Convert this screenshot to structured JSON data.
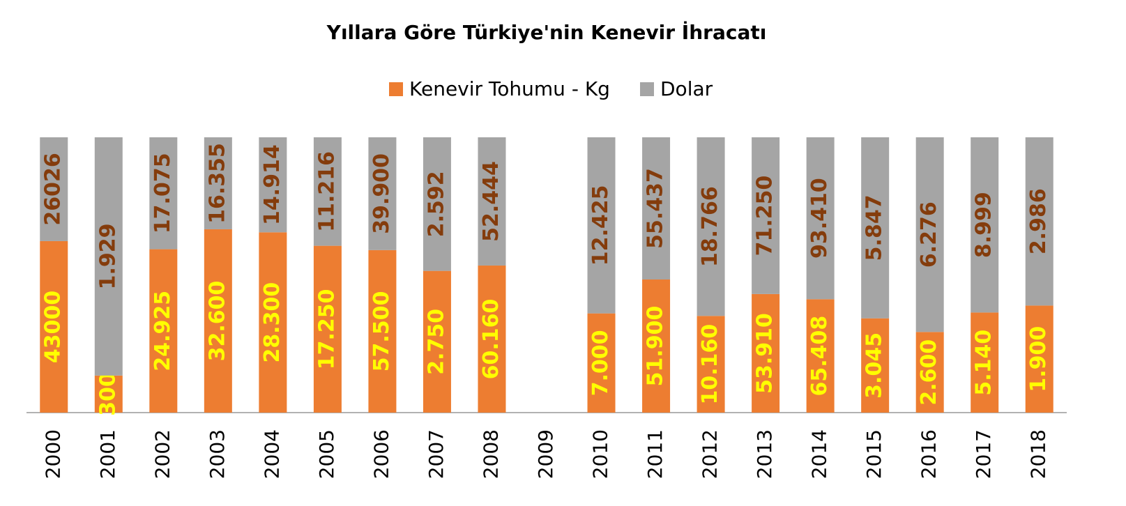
{
  "chart_data": {
    "type": "bar",
    "stacking": "percent",
    "title": "Yıllara Göre Türkiye'nin Kenevir İhracatı",
    "categories": [
      "2000",
      "2001",
      "2002",
      "2003",
      "2004",
      "2005",
      "2006",
      "2007",
      "2008",
      "2009",
      "2010",
      "2011",
      "2012",
      "2013",
      "2014",
      "2015",
      "2016",
      "2017",
      "2018"
    ],
    "series": [
      {
        "name": "Kenevir Tohumu - Kg",
        "color": "#ed7d31",
        "label_color": "#ffff00",
        "values": [
          43000,
          300,
          24925,
          32600,
          28300,
          17250,
          57500,
          2750,
          60160,
          null,
          7000,
          51900,
          10160,
          53910,
          65408,
          3045,
          2600,
          5140,
          1900
        ],
        "value_labels": [
          "43000",
          "300",
          "24.925",
          "32.600",
          "28.300",
          "17.250",
          "57.500",
          "2.750",
          "60.160",
          null,
          "7.000",
          "51.900",
          "10.160",
          "53.910",
          "65.408",
          "3.045",
          "2.600",
          "5.140",
          "1.900"
        ]
      },
      {
        "name": "Dolar",
        "color": "#a5a5a5",
        "label_color": "#843c0c",
        "values": [
          26026,
          1929,
          17075,
          16355,
          14914,
          11216,
          39900,
          2592,
          52444,
          null,
          12425,
          55437,
          18766,
          71250,
          93410,
          5847,
          6276,
          8999,
          2986
        ],
        "value_labels": [
          "26026",
          "1.929",
          "17.075",
          "16.355",
          "14.914",
          "11.216",
          "39.900",
          "2.592",
          "52.444",
          null,
          "12.425",
          "55.437",
          "18.766",
          "71.250",
          "93.410",
          "5.847",
          "6.276",
          "8.999",
          "2.986"
        ]
      }
    ],
    "legend": "top"
  }
}
